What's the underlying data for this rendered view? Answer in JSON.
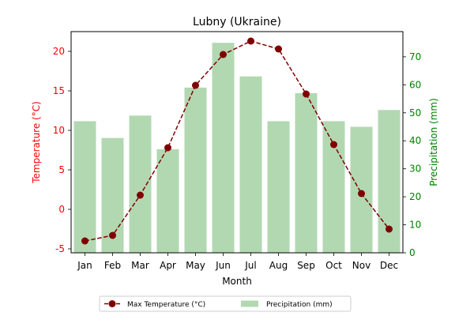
{
  "chart_data": {
    "type": "bar",
    "title": "Lubny (Ukraine)",
    "xlabel": "Month",
    "categories": [
      "Jan",
      "Feb",
      "Mar",
      "Apr",
      "May",
      "Jun",
      "Jul",
      "Aug",
      "Sep",
      "Oct",
      "Nov",
      "Dec"
    ],
    "temperature": {
      "name": "Max Temperature (°C)",
      "axis_label": "Temperature (°C)",
      "values": [
        -4.0,
        -3.3,
        1.8,
        7.8,
        15.7,
        19.6,
        21.3,
        20.3,
        14.6,
        8.2,
        2.0,
        -2.5
      ],
      "ylim": [
        -5.5,
        22.5
      ],
      "ticks": [
        -5,
        0,
        5,
        10,
        15,
        20
      ],
      "line_color": "#800000",
      "marker_color": "#800000",
      "axis_color": "#ff0000"
    },
    "precipitation": {
      "name": "Precipitation (mm)",
      "axis_label": "Precipitation (mm)",
      "values": [
        47,
        41,
        49,
        37,
        59,
        75,
        63,
        47,
        57,
        47,
        45,
        51
      ],
      "ylim": [
        0,
        79
      ],
      "ticks": [
        0,
        10,
        20,
        30,
        40,
        50,
        60,
        70
      ],
      "bar_color": "#b2d8b2",
      "axis_color": "#008000"
    },
    "legend_position": "bottom-center"
  }
}
